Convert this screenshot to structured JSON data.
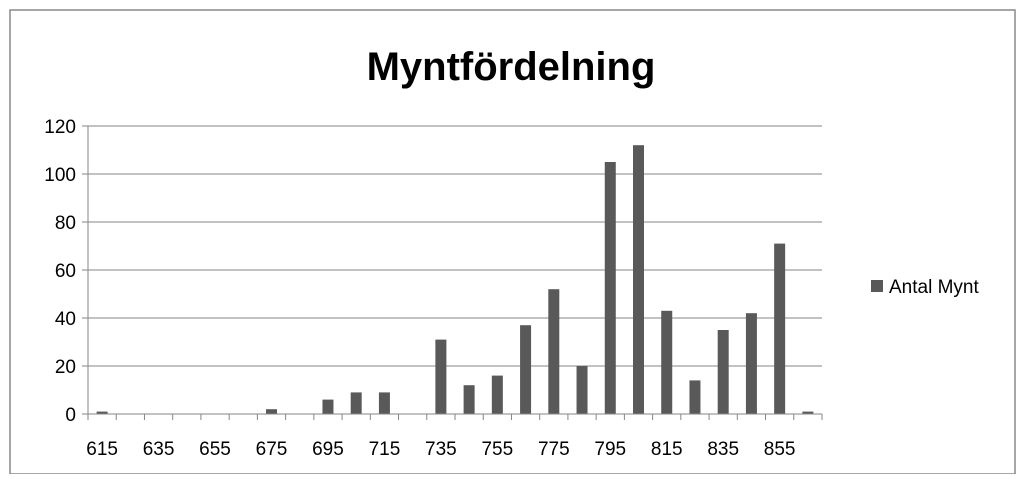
{
  "chart_data": {
    "type": "bar",
    "title": "Myntfördelning",
    "xlabel": "",
    "ylabel": "",
    "categories": [
      "615",
      "625",
      "635",
      "645",
      "655",
      "665",
      "675",
      "685",
      "695",
      "705",
      "715",
      "725",
      "735",
      "745",
      "755",
      "765",
      "775",
      "785",
      "795",
      "805",
      "815",
      "825",
      "835",
      "845",
      "855",
      "865"
    ],
    "x_tick_labels": [
      "615",
      "635",
      "655",
      "675",
      "695",
      "715",
      "735",
      "755",
      "775",
      "795",
      "815",
      "835",
      "855"
    ],
    "series": [
      {
        "name": "Antal Mynt",
        "color": "#595959",
        "values": [
          1,
          0,
          0,
          0,
          0,
          0,
          2,
          0,
          6,
          9,
          9,
          0,
          31,
          12,
          16,
          37,
          52,
          20,
          105,
          112,
          43,
          14,
          35,
          42,
          71,
          1
        ]
      }
    ],
    "ylim": [
      0,
      120
    ],
    "y_ticks": [
      0,
      20,
      40,
      60,
      80,
      100,
      120
    ],
    "grid": true,
    "legend": "right",
    "border_color": "#888888"
  }
}
